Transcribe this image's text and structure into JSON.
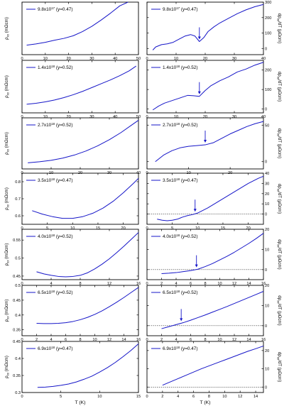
{
  "chart_data": [
    {
      "type": "line",
      "side": "left",
      "legend": {
        "text": "9.8x10",
        "exp": "17",
        "suffix": " (y=0.47)"
      },
      "ylabel": {
        "main": "ρ",
        "sub": "xx",
        "unit": " (mΩcm)"
      },
      "xlim": [
        0,
        50
      ],
      "xticks": [
        0,
        10,
        20,
        30,
        40,
        50
      ],
      "ylim": [
        0,
        10
      ],
      "yticks": [],
      "x": [
        2,
        6,
        10,
        14,
        18,
        22,
        26,
        30,
        34,
        38,
        42,
        45.5
      ],
      "y": [
        1.8,
        2.05,
        2.35,
        2.75,
        3.1,
        3.6,
        4.4,
        5.4,
        6.6,
        7.9,
        9.3,
        10.5
      ]
    },
    {
      "type": "line",
      "side": "right",
      "legend": {
        "text": "9.8x10",
        "exp": "17",
        "suffix": " (y=0.47)"
      },
      "ylabel": {
        "main": "dρ",
        "sub": "xx",
        "unit": "/dT (μΩcm)"
      },
      "xlim": [
        0,
        40
      ],
      "xticks": [
        0,
        10,
        20,
        30,
        40
      ],
      "ylim": [
        -40,
        300
      ],
      "yticks": [
        0,
        100,
        200,
        300
      ],
      "x": [
        2,
        3,
        5,
        7,
        9,
        11,
        13,
        15,
        16.5,
        18,
        19.5,
        21,
        23,
        25,
        28,
        31,
        34,
        37,
        40
      ],
      "y": [
        -10,
        10,
        25,
        30,
        40,
        60,
        80,
        90,
        80,
        45,
        70,
        110,
        140,
        165,
        195,
        225,
        250,
        270,
        285
      ],
      "arrow_x": 18
    },
    {
      "type": "line",
      "side": "left",
      "legend": {
        "text": "1.4x10",
        "exp": "18",
        "suffix": " (y=0.52)"
      },
      "ylabel": {
        "main": "ρ",
        "sub": "xx",
        "unit": " (mΩcm)"
      },
      "xlim": [
        0,
        50
      ],
      "xticks": [
        0,
        10,
        20,
        30,
        40,
        50
      ],
      "ylim": [
        0,
        5.5
      ],
      "yticks": [],
      "x": [
        2,
        6,
        10,
        14,
        18,
        22,
        26,
        30,
        34,
        38,
        42,
        46,
        49
      ],
      "y": [
        0.9,
        1.0,
        1.15,
        1.35,
        1.6,
        1.9,
        2.25,
        2.65,
        3.05,
        3.45,
        3.9,
        4.4,
        4.9
      ]
    },
    {
      "type": "line",
      "side": "right",
      "legend": {
        "text": "1.4x10",
        "exp": "18",
        "suffix": " (y=0.52)"
      },
      "ylabel": {
        "main": "dρ",
        "sub": "xx",
        "unit": "/dT (μΩcm)"
      },
      "xlim": [
        0,
        40
      ],
      "xticks": [
        0,
        10,
        20,
        30,
        40
      ],
      "ylim": [
        -20,
        250
      ],
      "yticks": [
        0,
        100,
        200
      ],
      "x": [
        2,
        4,
        6,
        8,
        10,
        12,
        14,
        16,
        18,
        20,
        22,
        25,
        28,
        31,
        34,
        37,
        40
      ],
      "y": [
        -5,
        15,
        30,
        40,
        50,
        60,
        70,
        68,
        65,
        95,
        120,
        145,
        165,
        190,
        205,
        225,
        240
      ],
      "arrow_x": 18
    },
    {
      "type": "line",
      "side": "left",
      "legend": {
        "text": "2.7x10",
        "exp": "18",
        "suffix": " (y=0.52)"
      },
      "ylabel": {
        "main": "ρ",
        "sub": "xx",
        "unit": " (mΩcm)"
      },
      "xlim": [
        0,
        40
      ],
      "xticks": [
        0,
        10,
        20,
        30,
        40
      ],
      "ylim": [
        0.5,
        3.0
      ],
      "yticks": [],
      "x": [
        2,
        6,
        10,
        14,
        18,
        22,
        26,
        30,
        34,
        38,
        40
      ],
      "y": [
        0.8,
        0.85,
        0.92,
        1.03,
        1.18,
        1.38,
        1.63,
        1.93,
        2.28,
        2.68,
        2.88
      ]
    },
    {
      "type": "line",
      "side": "right",
      "legend": {
        "text": "2.7x10",
        "exp": "18",
        "suffix": " (y=0.52)"
      },
      "ylabel": {
        "main": "dρ",
        "sub": "xx",
        "unit": "/dT (μΩcm)"
      },
      "xlim": [
        0,
        28
      ],
      "xticks": [
        0,
        10,
        20
      ],
      "ylim": [
        -10,
        60
      ],
      "yticks": [
        0,
        50
      ],
      "x": [
        2,
        4,
        6,
        8,
        10,
        12,
        14,
        16,
        18,
        20,
        22,
        24,
        26,
        28
      ],
      "y": [
        0,
        9,
        15,
        19,
        21,
        22,
        23,
        26,
        32,
        38,
        43,
        48,
        52,
        55
      ],
      "arrow_x": 14
    },
    {
      "type": "line",
      "side": "left",
      "legend": {
        "text": "3.5x10",
        "exp": "18",
        "suffix": " (y=0.47)"
      },
      "ylabel": {
        "main": "ρ",
        "sub": "xx",
        "unit": " (mΩcm)"
      },
      "xlim": [
        0,
        23
      ],
      "xticks": [
        0,
        5,
        10,
        15,
        20
      ],
      "ylim": [
        0.55,
        0.85
      ],
      "yticks": [
        0.6,
        0.7,
        0.8
      ],
      "x": [
        2,
        4,
        6,
        8,
        10,
        12,
        14,
        16,
        18,
        20,
        22,
        23
      ],
      "y": [
        0.63,
        0.61,
        0.595,
        0.585,
        0.585,
        0.595,
        0.615,
        0.645,
        0.685,
        0.735,
        0.79,
        0.82
      ],
      "arrow_x": null
    },
    {
      "type": "line",
      "side": "right",
      "legend": {
        "text": "3.5x10",
        "exp": "18",
        "suffix": " (y=0.47)"
      },
      "ylabel": {
        "main": "dρ",
        "sub": "xx",
        "unit": "/dT (μΩcm)"
      },
      "xlim": [
        0,
        23
      ],
      "xticks": [
        0,
        5,
        10,
        15,
        20
      ],
      "ylim": [
        -10,
        40
      ],
      "yticks": [
        0,
        10,
        20,
        30,
        40
      ],
      "x": [
        2,
        3,
        4,
        5,
        6,
        7,
        8,
        9,
        10,
        12,
        14,
        16,
        18,
        20,
        22,
        23
      ],
      "y": [
        -5,
        -6,
        -6.5,
        -6,
        -5,
        -3,
        -1.5,
        -0.5,
        1,
        6,
        12,
        18,
        24,
        30,
        35,
        37
      ],
      "arrow_x": 9.5,
      "zero_line": 0
    },
    {
      "type": "line",
      "side": "left",
      "legend": {
        "text": "4.0x10",
        "exp": "18",
        "suffix": " (y=0.52)"
      },
      "ylabel": {
        "main": "ρ",
        "sub": "xx",
        "unit": " (mΩcm)"
      },
      "xlim": [
        0,
        16
      ],
      "xticks": [
        0,
        4,
        8,
        12,
        16
      ],
      "ylim": [
        0.44,
        0.58
      ],
      "yticks": [
        0.45,
        0.5,
        0.55
      ],
      "x": [
        2,
        3,
        4,
        5,
        6,
        7,
        8,
        9,
        10,
        11,
        12,
        13,
        14,
        15,
        16
      ],
      "y": [
        0.462,
        0.456,
        0.452,
        0.449,
        0.448,
        0.449,
        0.452,
        0.459,
        0.47,
        0.483,
        0.498,
        0.515,
        0.533,
        0.552,
        0.571
      ]
    },
    {
      "type": "line",
      "side": "right",
      "legend": {
        "text": "4.0x10",
        "exp": "18",
        "suffix": " (y=0.52)"
      },
      "ylabel": {
        "main": "dρ",
        "sub": "xx",
        "unit": "/dT (μΩcm)"
      },
      "xlim": [
        0,
        16
      ],
      "xticks": [
        0,
        2,
        4,
        6,
        8,
        10,
        12,
        14,
        16
      ],
      "ylim": [
        -5,
        20
      ],
      "yticks": [
        0,
        10,
        20
      ],
      "x": [
        2,
        3,
        4,
        5,
        6,
        7,
        8,
        9,
        10,
        11,
        12,
        13,
        14,
        15,
        16
      ],
      "y": [
        -2,
        -1.8,
        -1.5,
        -1,
        -0.5,
        0.2,
        1.5,
        3,
        4.8,
        6.6,
        8.6,
        10.8,
        13,
        15.4,
        18
      ],
      "arrow_x": 6.8,
      "zero_line": 0
    },
    {
      "type": "line",
      "side": "left",
      "legend": {
        "text": "6.5x10",
        "exp": "18",
        "suffix": " (y=0.52)"
      },
      "ylabel": {
        "main": "ρ",
        "sub": "xx",
        "unit": " (mΩcm)"
      },
      "xlim": [
        0,
        16
      ],
      "xticks": [
        0,
        2,
        4,
        6,
        8,
        10,
        12,
        14,
        16
      ],
      "ylim": [
        0.33,
        0.5
      ],
      "yticks": [
        0.35,
        0.4,
        0.45,
        0.5
      ],
      "x": [
        2,
        3,
        4,
        5,
        6,
        7,
        8,
        9,
        10,
        11,
        12,
        13,
        14,
        15,
        16
      ],
      "y": [
        0.372,
        0.371,
        0.371,
        0.372,
        0.374,
        0.378,
        0.384,
        0.392,
        0.402,
        0.414,
        0.428,
        0.443,
        0.459,
        0.476,
        0.493
      ]
    },
    {
      "type": "line",
      "side": "right",
      "legend": {
        "text": "6.5x10",
        "exp": "18",
        "suffix": " (y=0.52)"
      },
      "ylabel": {
        "main": "dρ",
        "sub": "xx",
        "unit": "/dT (μΩcm)"
      },
      "xlim": [
        0,
        16
      ],
      "xticks": [
        0,
        2,
        4,
        6,
        8,
        10,
        12,
        14,
        16
      ],
      "ylim": [
        -5,
        20
      ],
      "yticks": [
        0,
        10,
        20
      ],
      "x": [
        2,
        3,
        4,
        5,
        6,
        7,
        8,
        9,
        10,
        11,
        12,
        13,
        14,
        15,
        16
      ],
      "y": [
        -1.5,
        -0.5,
        0.5,
        1.5,
        2.7,
        4,
        5.3,
        6.7,
        8.1,
        9.5,
        11,
        12.5,
        14,
        15.5,
        17
      ],
      "arrow_x": 4.7,
      "zero_line": 0
    },
    {
      "type": "line",
      "side": "left",
      "legend": {
        "text": "6.9x10",
        "exp": "18",
        "suffix": " (y=0.47)"
      },
      "ylabel": {
        "main": "ρ",
        "sub": "xx",
        "unit": " (mΩcm)"
      },
      "xlim": [
        0,
        15
      ],
      "xticks": [
        0,
        5,
        10,
        15
      ],
      "ylim": [
        0.3,
        0.45
      ],
      "yticks": [
        0.3,
        0.35,
        0.4,
        0.45
      ],
      "x": [
        2,
        3,
        4,
        5,
        6,
        7,
        8,
        9,
        10,
        11,
        12,
        13,
        14,
        15
      ],
      "y": [
        0.315,
        0.316,
        0.318,
        0.321,
        0.325,
        0.331,
        0.339,
        0.348,
        0.36,
        0.373,
        0.388,
        0.405,
        0.423,
        0.443
      ]
    },
    {
      "type": "line",
      "side": "right",
      "legend": {
        "text": "6.9x10",
        "exp": "18",
        "suffix": " (y=0.47)"
      },
      "ylabel": {
        "main": "dρ",
        "sub": "xx",
        "unit": "/dT (μΩcm)"
      },
      "xlim": [
        0,
        15
      ],
      "xticks": [
        0,
        2,
        4,
        6,
        8,
        10,
        12,
        14
      ],
      "ylim": [
        -3,
        25
      ],
      "yticks": [
        0,
        10,
        20
      ],
      "x": [
        2,
        3,
        4,
        5,
        6,
        7,
        8,
        9,
        10,
        11,
        12,
        13,
        14,
        15
      ],
      "y": [
        1,
        2.8,
        4.6,
        6.4,
        8.2,
        10,
        11.6,
        13.2,
        14.8,
        16.4,
        18,
        19.6,
        21,
        22.5
      ],
      "arrow_x": null,
      "zero_line": 0
    }
  ],
  "xaxis_label": "T (K)"
}
